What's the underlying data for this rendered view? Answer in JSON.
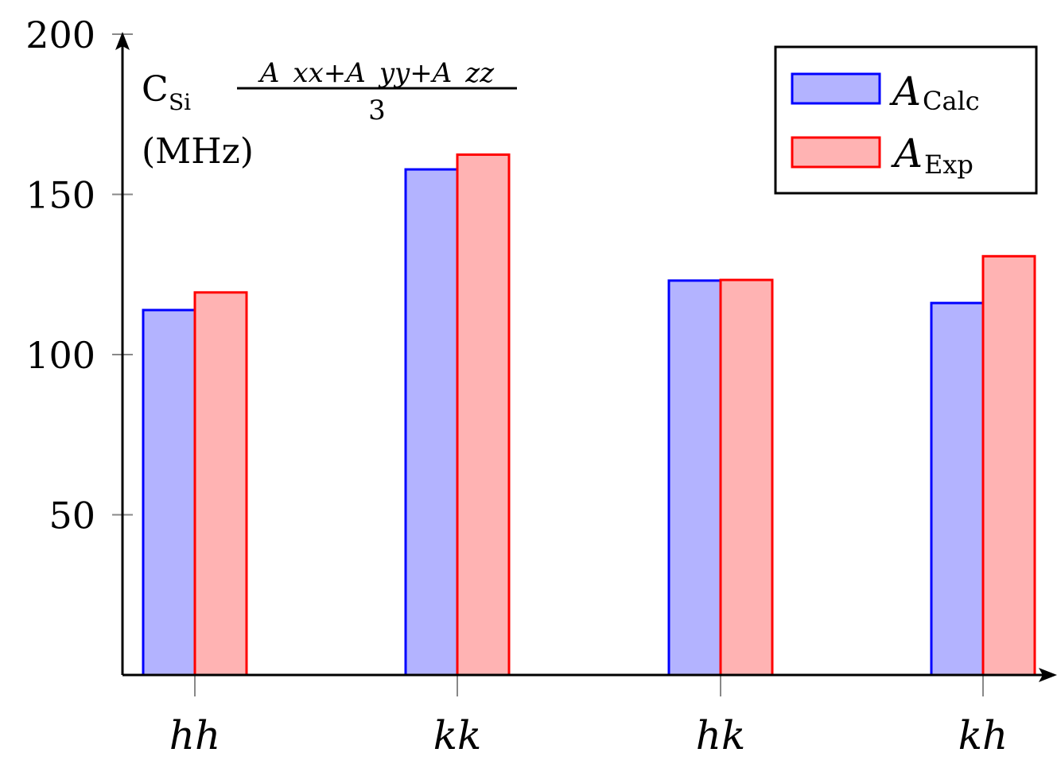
{
  "chart_data": {
    "type": "bar",
    "title": "",
    "xlabel": "",
    "ylabel": "C_Si (A_xx+A_yy+A_zz)/3 (MHz)",
    "ylabel_parts": {
      "main": "C",
      "sub": "Si",
      "numerator": "A_xx+A_yy+A_zz",
      "denominator": "3",
      "unit": "(MHz)"
    },
    "categories": [
      "hh",
      "kk",
      "hk",
      "kh"
    ],
    "series": [
      {
        "name": "A_Calc",
        "label_main": "A",
        "label_sub": "Calc",
        "values": [
          113.9,
          157.8,
          123.1,
          116.1
        ],
        "fill": "#b3b3ff",
        "stroke": "#0000ff"
      },
      {
        "name": "A_Exp",
        "label_main": "A",
        "label_sub": "Exp",
        "values": [
          119.4,
          162.4,
          123.3,
          130.7
        ],
        "fill": "#ffb3b3",
        "stroke": "#ff0000"
      }
    ],
    "ylim": [
      0,
      200
    ],
    "yticks": [
      50,
      100,
      150,
      200
    ],
    "grid": false,
    "legend_position": "top-right"
  }
}
